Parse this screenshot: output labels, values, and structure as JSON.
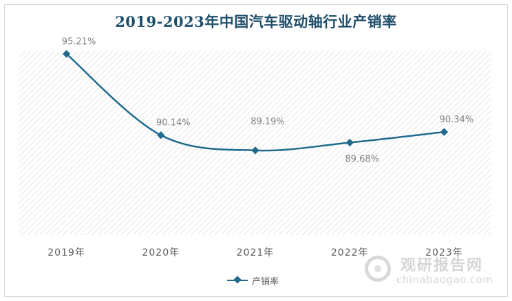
{
  "title": "2019-2023年中国汽车驱动轴行业产销率",
  "chart_data": {
    "type": "line",
    "categories": [
      "2019年",
      "2020年",
      "2021年",
      "2022年",
      "2023年"
    ],
    "series": [
      {
        "name": "产销率",
        "values": [
          95.21,
          90.14,
          89.19,
          89.68,
          90.34
        ],
        "labels": [
          "95.21%",
          "90.14%",
          "89.19%",
          "89.68%",
          "90.34%"
        ],
        "color": "#1f6a8f"
      }
    ],
    "ylim": [
      87.0,
      96.0
    ],
    "grid": false,
    "legend": "bottom",
    "background_pattern": "diagonal-hatch"
  },
  "legend": {
    "label": "产销率"
  },
  "watermark": {
    "name": "观研报告网",
    "url": "chinabaogao.com"
  }
}
